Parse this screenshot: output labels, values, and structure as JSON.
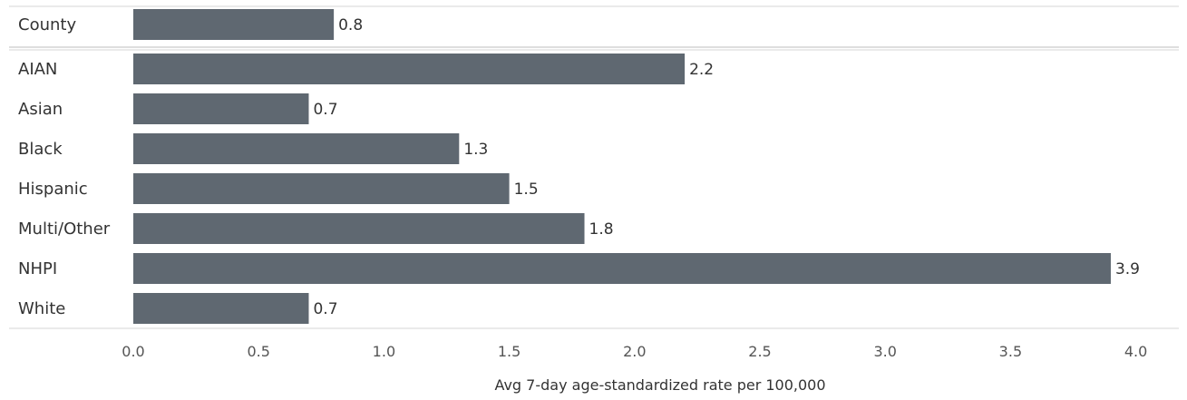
{
  "chart_data": {
    "type": "bar",
    "orientation": "horizontal",
    "categories": [
      "County",
      "AIAN",
      "Asian",
      "Black",
      "Hispanic",
      "Multi/Other",
      "NHPI",
      "White"
    ],
    "values": [
      0.8,
      2.2,
      0.7,
      1.3,
      1.5,
      1.8,
      3.9,
      0.7
    ],
    "value_labels": [
      "0.8",
      "2.2",
      "0.7",
      "1.3",
      "1.5",
      "1.8",
      "3.9",
      "0.7"
    ],
    "title": "",
    "xlabel": "Avg 7-day age-standardized rate per 100,000",
    "ylabel": "",
    "xlim": [
      0,
      4.1
    ],
    "x_ticks": [
      0.0,
      0.5,
      1.0,
      1.5,
      2.0,
      2.5,
      3.0,
      3.5,
      4.0
    ],
    "x_tick_labels": [
      "0.0",
      "0.5",
      "1.0",
      "1.5",
      "2.0",
      "2.5",
      "3.0",
      "3.5",
      "4.0"
    ],
    "grid": false,
    "legend": "none",
    "bar_color": "#5f6871"
  }
}
